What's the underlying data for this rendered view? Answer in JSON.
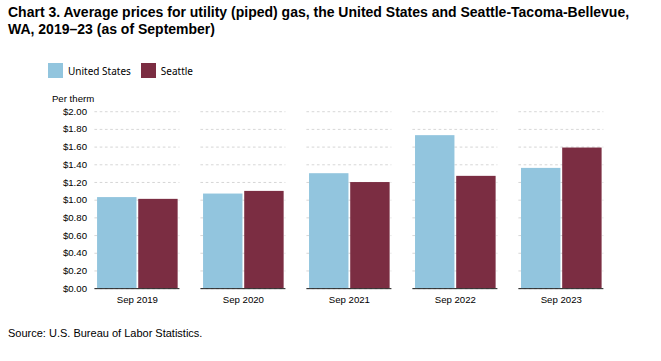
{
  "chart_data": {
    "type": "bar",
    "title": "Chart 3. Average prices for utility (piped) gas, the United States and Seattle-Tacoma-Bellevue, WA, 2019–23 (as of September)",
    "y_label": "Per therm",
    "source": "Source: U.S. Bureau of Labor Statistics.",
    "categories": [
      "Sep 2019",
      "Sep 2020",
      "Sep 2021",
      "Sep 2022",
      "Sep 2023"
    ],
    "series": [
      {
        "name": "United States",
        "color": "#92C5DE",
        "values": [
          1.03,
          1.07,
          1.3,
          1.73,
          1.36
        ]
      },
      {
        "name": "Seattle",
        "color": "#7B2D42",
        "values": [
          1.01,
          1.1,
          1.2,
          1.27,
          1.59
        ]
      }
    ],
    "ylim": [
      0,
      2.0
    ],
    "yticks": [
      {
        "value": 0.0,
        "label": "$0.00"
      },
      {
        "value": 0.2,
        "label": "$0.20"
      },
      {
        "value": 0.4,
        "label": "$0.40"
      },
      {
        "value": 0.6,
        "label": "$0.60"
      },
      {
        "value": 0.8,
        "label": "$0.80"
      },
      {
        "value": 1.0,
        "label": "$1.00"
      },
      {
        "value": 1.2,
        "label": "$1.20"
      },
      {
        "value": 1.4,
        "label": "$1.40"
      },
      {
        "value": 1.6,
        "label": "$1.60"
      },
      {
        "value": 1.8,
        "label": "$1.80"
      },
      {
        "value": 2.0,
        "label": "$2.00"
      }
    ],
    "grid": true,
    "legend": "top"
  }
}
